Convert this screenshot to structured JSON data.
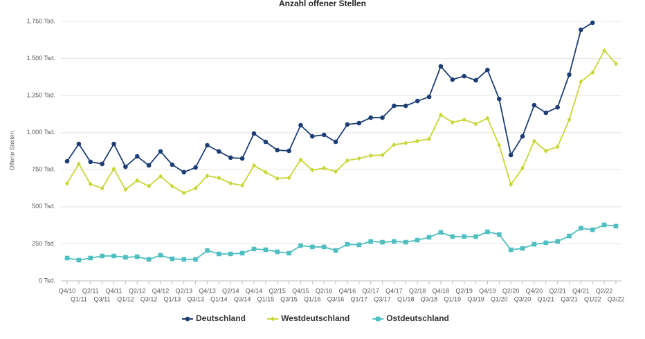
{
  "chart_data": {
    "type": "line",
    "title": "Anzahl offener Stellen",
    "y_label": "Offene Stellen",
    "categories": [
      "Q4/10",
      "Q1/11",
      "Q2/11",
      "Q3/11",
      "Q4/11",
      "Q1/12",
      "Q2/12",
      "Q3/12",
      "Q4/12",
      "Q1/13",
      "Q2/13",
      "Q3/13",
      "Q4/13",
      "Q1/14",
      "Q2/14",
      "Q3/14",
      "Q4/14",
      "Q1/15",
      "Q2/15",
      "Q3/15",
      "Q4/15",
      "Q1/16",
      "Q2/16",
      "Q3/16",
      "Q4/16",
      "Q1/17",
      "Q2/17",
      "Q3/17",
      "Q4/17",
      "Q1/18",
      "Q2/18",
      "Q3/18",
      "Q4/18",
      "Q1/19",
      "Q2/19",
      "Q3/19",
      "Q4/19",
      "Q1/20",
      "Q2/20",
      "Q3/20",
      "Q4/20",
      "Q1/21",
      "Q2/21",
      "Q3/21",
      "Q4/21",
      "Q1/22",
      "Q2/22",
      "Q3/22"
    ],
    "series": [
      {
        "name": "Deutschland",
        "color": "#1d3e74",
        "marker": "circle",
        "values": [
          807,
          924,
          803,
          789,
          924,
          770,
          840,
          779,
          873,
          784,
          733,
          765,
          915,
          873,
          831,
          826,
          994,
          938,
          882,
          877,
          1050,
          975,
          985,
          938,
          1055,
          1064,
          1101,
          1101,
          1181,
          1181,
          1213,
          1241,
          1447,
          1358,
          1381,
          1353,
          1423,
          1227,
          849,
          975,
          1185,
          1134,
          1171,
          1391,
          1694,
          1741,
          null,
          null
        ]
      },
      {
        "name": "Westdeutschland",
        "color": "#c9d636",
        "marker": "diamond",
        "values": [
          658,
          789,
          653,
          625,
          756,
          616,
          677,
          639,
          705,
          639,
          593,
          625,
          709,
          695,
          658,
          644,
          779,
          733,
          691,
          695,
          817,
          747,
          761,
          737,
          812,
          826,
          845,
          849,
          919,
          929,
          943,
          957,
          1120,
          1069,
          1087,
          1059,
          1097,
          915,
          649,
          761,
          943,
          877,
          905,
          1087,
          1344,
          1405,
          1554,
          1465
        ]
      },
      {
        "name": "Ostdeutschland",
        "color": "#4fbfc1",
        "marker": "square",
        "values": [
          154,
          140,
          154,
          168,
          168,
          159,
          163,
          145,
          173,
          149,
          145,
          145,
          205,
          182,
          182,
          187,
          215,
          210,
          196,
          187,
          238,
          229,
          229,
          205,
          247,
          243,
          266,
          261,
          266,
          261,
          275,
          294,
          327,
          299,
          299,
          299,
          331,
          313,
          210,
          219,
          247,
          257,
          266,
          303,
          355,
          345,
          378,
          369
        ]
      }
    ],
    "ylim": [
      0,
      1750
    ],
    "yticks": [
      {
        "value": 0,
        "label": "0 Tsd."
      },
      {
        "value": 250,
        "label": "250 Tsd."
      },
      {
        "value": 500,
        "label": "500 Tsd."
      },
      {
        "value": 750,
        "label": "750 Tsd."
      },
      {
        "value": 1000,
        "label": "1.000 Tsd."
      },
      {
        "value": 1250,
        "label": "1.250 Tsd."
      },
      {
        "value": 1500,
        "label": "1.500 Tsd."
      },
      {
        "value": 1750,
        "label": "1.750 Tsd."
      }
    ],
    "grid": true,
    "legend": "bottom"
  }
}
